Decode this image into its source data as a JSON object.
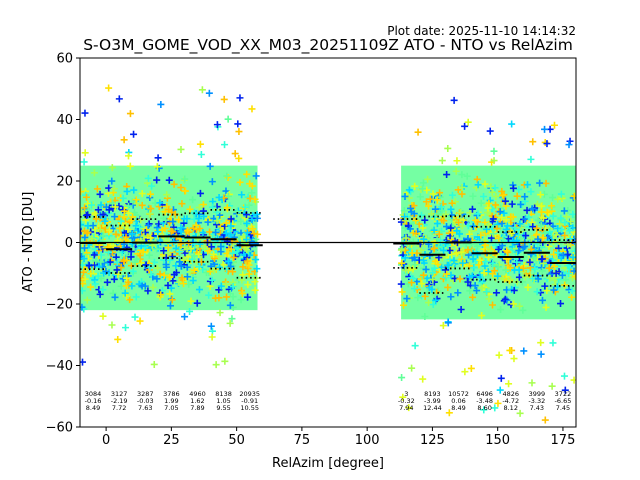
{
  "plot_date": "Plot date: 2025-11-10 14:14:32",
  "chart_data": {
    "type": "scatter",
    "title": "S-O3M_GOME_VOD_XX_M03_20251109Z ATO - NTO vs RelAzim",
    "xlabel": "RelAzim [degree]",
    "ylabel": "ATO - NTO [DU]",
    "xlim": [
      -10,
      180
    ],
    "ylim": [
      -60,
      60
    ],
    "xticks": [
      0,
      25,
      50,
      75,
      100,
      125,
      150,
      175
    ],
    "yticks": [
      -60,
      -40,
      -20,
      0,
      20,
      40,
      60
    ],
    "marker": "+",
    "zero_line": 0,
    "colors": [
      "#0022ee",
      "#0090ff",
      "#00d8ff",
      "#30ffd8",
      "#60ff98",
      "#a8ff50",
      "#e0ff20",
      "#ffe000",
      "#ffc000"
    ],
    "clusters": [
      {
        "x_range": [
          -10,
          58
        ],
        "mean_band": [
          -22,
          25
        ],
        "outlier_range": [
          -40,
          52
        ]
      },
      {
        "x_range": [
          113,
          180
        ],
        "mean_band": [
          -25,
          25
        ],
        "outlier_range": [
          -58,
          47
        ]
      }
    ],
    "bins": [
      {
        "x0": -10,
        "x1": 0,
        "n": "3084",
        "mean": "-0.16",
        "std": "8.49",
        "mean_v": -0.16,
        "std_v": 8.49
      },
      {
        "x0": 0,
        "x1": 10,
        "n": "3127",
        "mean": "-2.19",
        "std": "7.72",
        "mean_v": -2.19,
        "std_v": 7.72
      },
      {
        "x0": 10,
        "x1": 20,
        "n": "3287",
        "mean": "-0.03",
        "std": "7.63",
        "mean_v": -0.03,
        "std_v": 7.63
      },
      {
        "x0": 20,
        "x1": 30,
        "n": "3786",
        "mean": "1.99",
        "std": "7.05",
        "mean_v": 1.99,
        "std_v": 7.05
      },
      {
        "x0": 30,
        "x1": 40,
        "n": "4960",
        "mean": "1.62",
        "std": "7.89",
        "mean_v": 1.62,
        "std_v": 7.89
      },
      {
        "x0": 40,
        "x1": 50,
        "n": "8138",
        "mean": "1.05",
        "std": "9.55",
        "mean_v": 1.05,
        "std_v": 9.55
      },
      {
        "x0": 50,
        "x1": 60,
        "n": "20935",
        "mean": "-0.91",
        "std": "10.55",
        "mean_v": -0.91,
        "std_v": 10.55
      },
      {
        "x0": 110,
        "x1": 120,
        "n": "3",
        "mean": "-0.32",
        "std": "7.94",
        "mean_v": -0.32,
        "std_v": 7.94
      },
      {
        "x0": 120,
        "x1": 130,
        "n": "8193",
        "mean": "-3.99",
        "std": "12.44",
        "mean_v": -3.99,
        "std_v": 12.44
      },
      {
        "x0": 130,
        "x1": 140,
        "n": "10572",
        "mean": "0.06",
        "std": "8.49",
        "mean_v": 0.06,
        "std_v": 8.49
      },
      {
        "x0": 140,
        "x1": 150,
        "n": "6496",
        "mean": "-3.48",
        "std": "8.60",
        "mean_v": -3.48,
        "std_v": 8.6
      },
      {
        "x0": 150,
        "x1": 160,
        "n": "4826",
        "mean": "-4.72",
        "std": "8.12",
        "mean_v": -4.72,
        "std_v": 8.12
      },
      {
        "x0": 160,
        "x1": 170,
        "n": "3999",
        "mean": "-3.32",
        "std": "7.43",
        "mean_v": -3.32,
        "std_v": 7.43
      },
      {
        "x0": 170,
        "x1": 180,
        "n": "3722",
        "mean": "-6.65",
        "std": "7.45",
        "mean_v": -6.65,
        "std_v": 7.45
      }
    ]
  }
}
